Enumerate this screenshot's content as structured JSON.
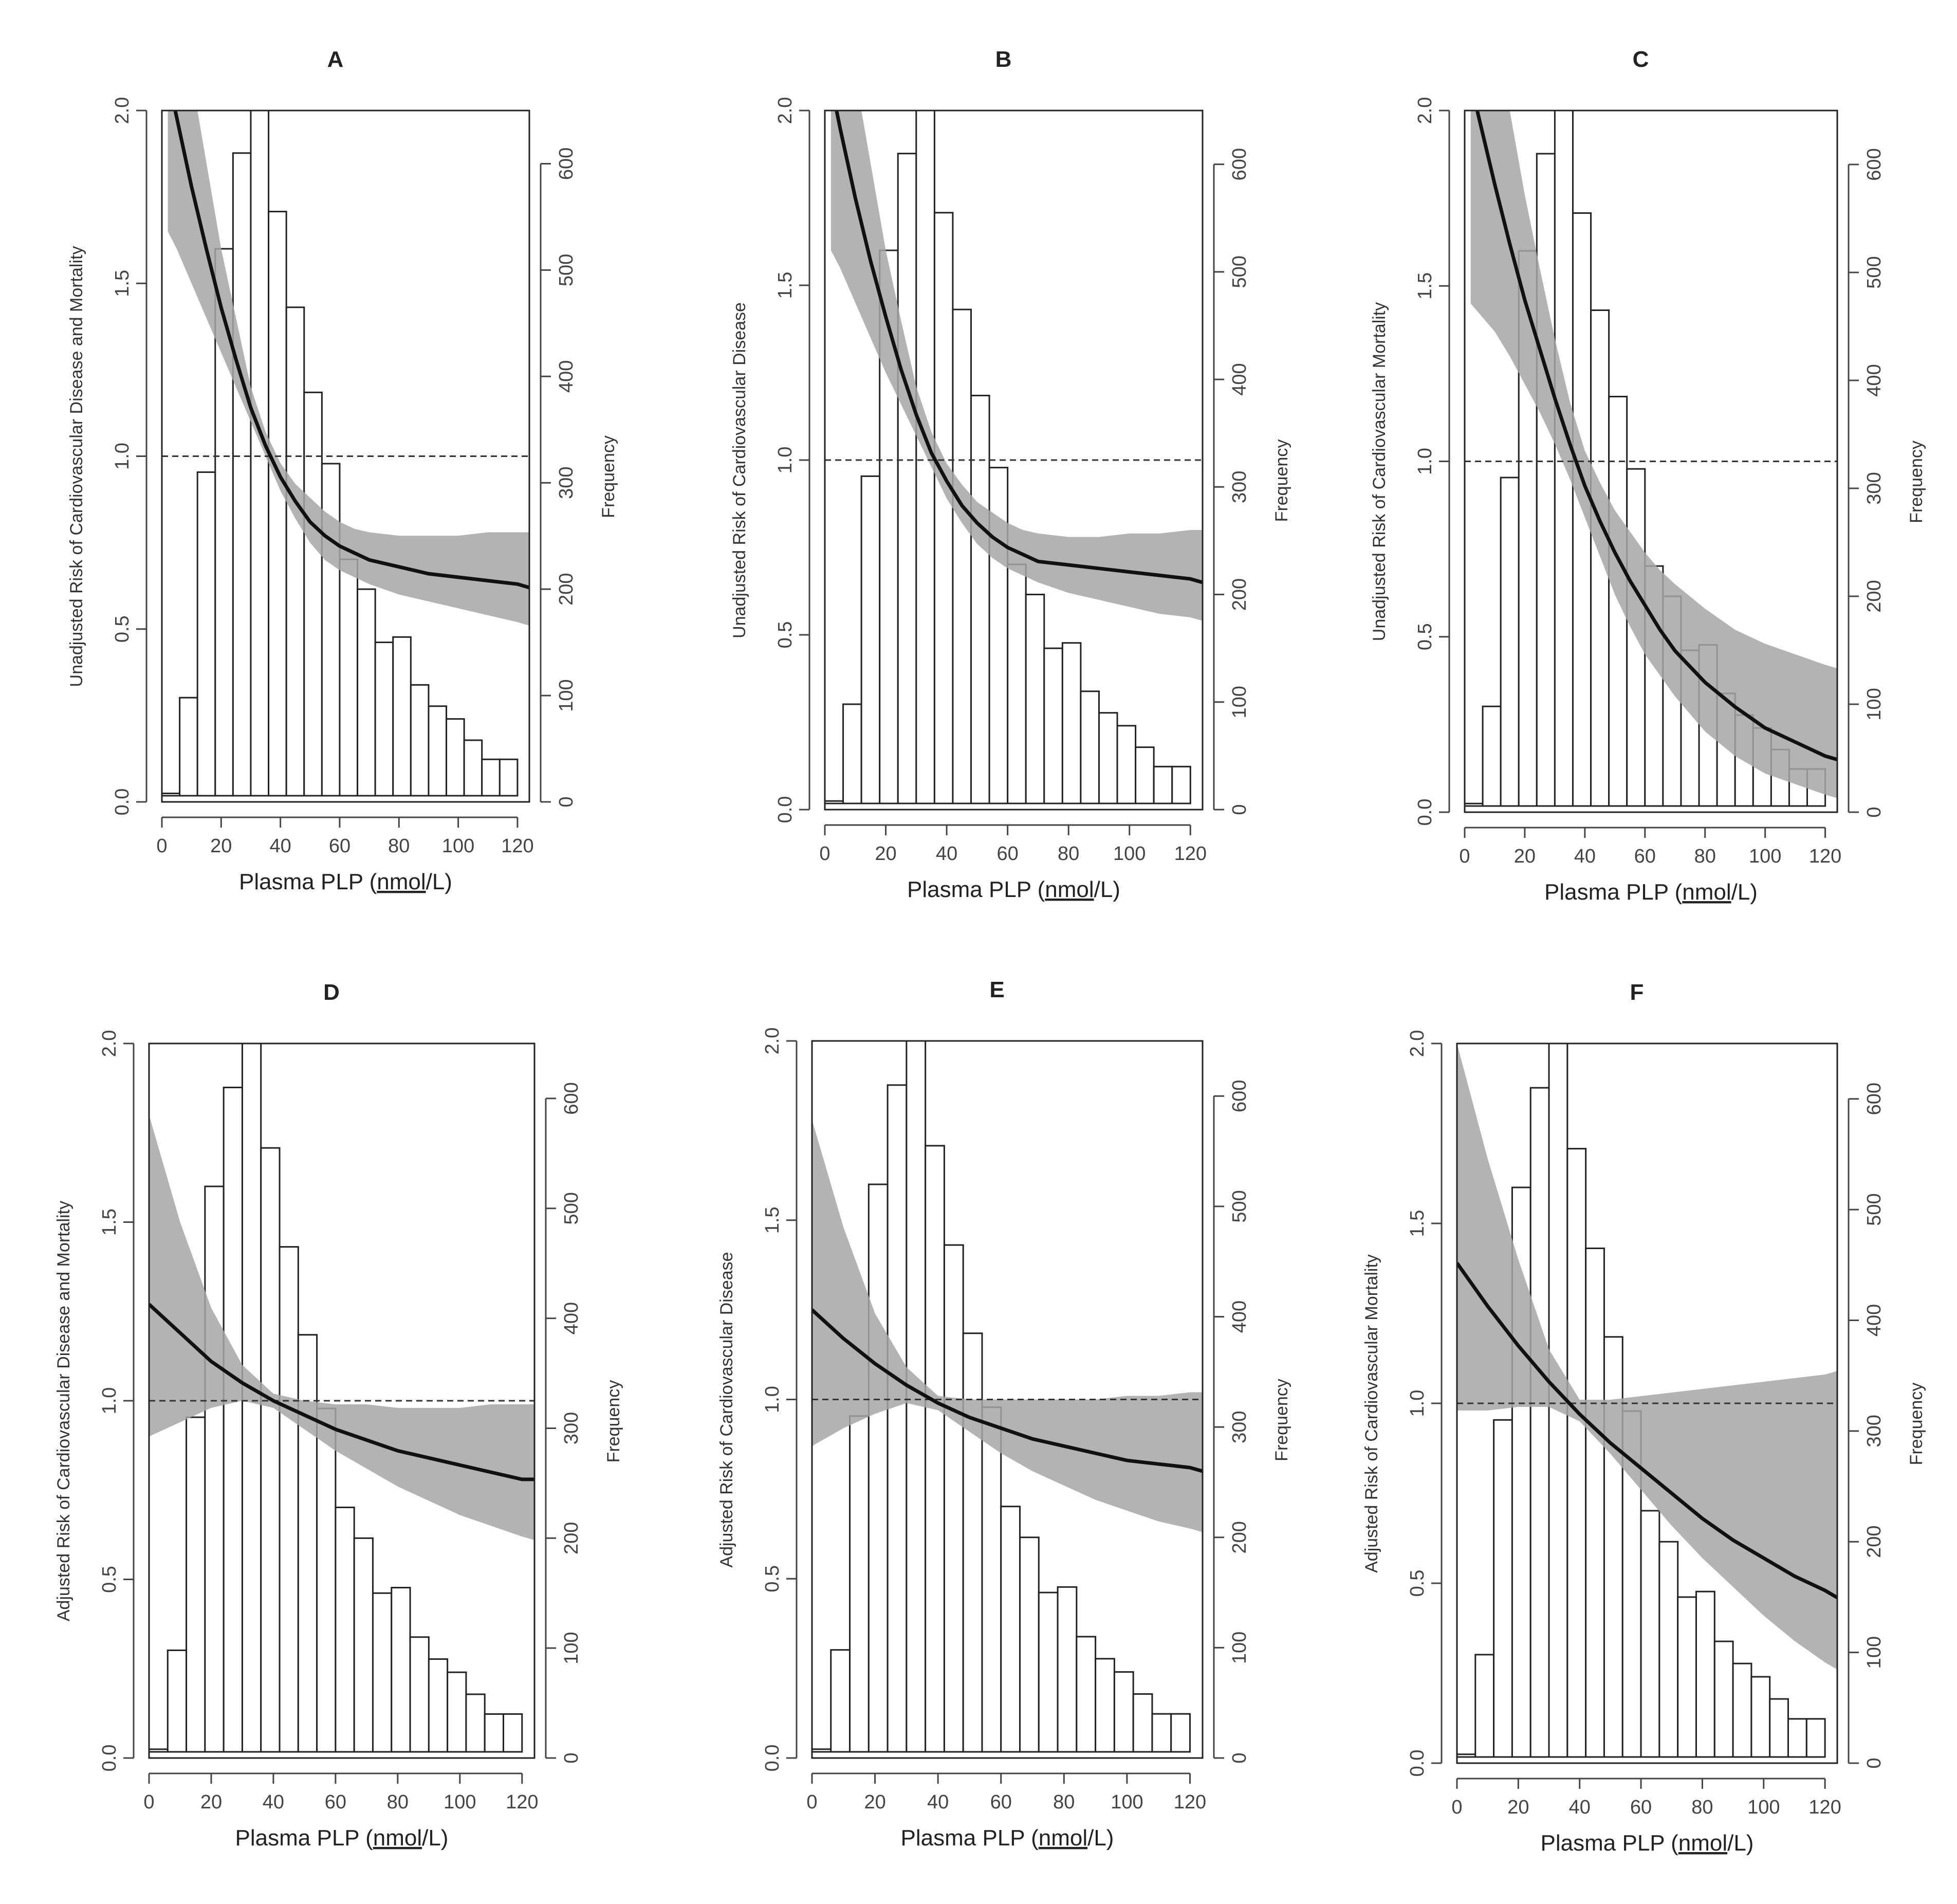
{
  "chart_data": [
    {
      "type": "line",
      "panel_label": "A",
      "title": "A",
      "xlabel": "Plasma PLP (nmol/L)",
      "ylabel": "Unadjusted Risk of Cardiovascular Disease and Mortality",
      "y2label": "Frequency",
      "xlim": [
        0,
        124
      ],
      "ylim": [
        0,
        2.0
      ],
      "y2lim": [
        0,
        650
      ],
      "xticks": [
        "0",
        "20",
        "40",
        "60",
        "80",
        "100",
        "120"
      ],
      "yticks": [
        "0.0",
        "0.5",
        "1.0",
        "1.5",
        "2.0"
      ],
      "y2ticks": [
        "0",
        "100",
        "200",
        "300",
        "400",
        "500",
        "600"
      ],
      "reference_line": 1.0,
      "curve": {
        "x": [
          2,
          5,
          10,
          15,
          20,
          25,
          30,
          35,
          40,
          45,
          50,
          55,
          60,
          65,
          70,
          80,
          90,
          100,
          110,
          120,
          124
        ],
        "y": [
          2.1,
          1.98,
          1.78,
          1.6,
          1.43,
          1.28,
          1.14,
          1.03,
          0.94,
          0.87,
          0.81,
          0.77,
          0.74,
          0.72,
          0.7,
          0.68,
          0.66,
          0.65,
          0.64,
          0.63,
          0.62
        ]
      },
      "ci_lower": [
        1.65,
        1.6,
        1.5,
        1.4,
        1.3,
        1.2,
        1.1,
        1.0,
        0.9,
        0.82,
        0.75,
        0.7,
        0.67,
        0.65,
        0.63,
        0.6,
        0.58,
        0.56,
        0.54,
        0.52,
        0.51
      ],
      "ci_upper": [
        2.1,
        2.1,
        2.1,
        1.85,
        1.6,
        1.4,
        1.2,
        1.07,
        0.98,
        0.92,
        0.88,
        0.84,
        0.81,
        0.79,
        0.78,
        0.77,
        0.77,
        0.77,
        0.78,
        0.78,
        0.78
      ],
      "histogram": {
        "bin_width": 6,
        "bin_starts": [
          0,
          6,
          12,
          18,
          24,
          30,
          36,
          42,
          48,
          54,
          60,
          66,
          72,
          78,
          84,
          90,
          96,
          102,
          108,
          114
        ],
        "counts": [
          8,
          98,
          310,
          520,
          610,
          650,
          555,
          465,
          385,
          318,
          228,
          200,
          150,
          155,
          110,
          90,
          78,
          58,
          40,
          40
        ]
      }
    },
    {
      "type": "line",
      "panel_label": "B",
      "title": "B",
      "xlabel": "Plasma PLP (nmol/L)",
      "ylabel": "Unadjusted Risk of Cardiovascular Disease",
      "y2label": "Frequency",
      "xlim": [
        0,
        124
      ],
      "ylim": [
        0,
        2.0
      ],
      "y2lim": [
        0,
        650
      ],
      "xticks": [
        "0",
        "20",
        "40",
        "60",
        "80",
        "100",
        "120"
      ],
      "yticks": [
        "0.0",
        "0.5",
        "1.0",
        "1.5",
        "2.0"
      ],
      "y2ticks": [
        "0",
        "100",
        "200",
        "300",
        "400",
        "500",
        "600"
      ],
      "reference_line": 1.0,
      "curve": {
        "x": [
          2,
          5,
          10,
          15,
          20,
          25,
          30,
          35,
          40,
          45,
          50,
          55,
          60,
          65,
          70,
          80,
          90,
          100,
          110,
          120,
          124
        ],
        "y": [
          2.08,
          1.95,
          1.75,
          1.57,
          1.41,
          1.26,
          1.13,
          1.02,
          0.94,
          0.87,
          0.82,
          0.78,
          0.75,
          0.73,
          0.71,
          0.7,
          0.69,
          0.68,
          0.67,
          0.66,
          0.65
        ]
      },
      "ci_lower": [
        1.6,
        1.55,
        1.45,
        1.35,
        1.25,
        1.16,
        1.07,
        0.98,
        0.89,
        0.82,
        0.76,
        0.72,
        0.69,
        0.67,
        0.65,
        0.62,
        0.6,
        0.58,
        0.56,
        0.55,
        0.54
      ],
      "ci_upper": [
        2.1,
        2.1,
        2.1,
        1.85,
        1.6,
        1.4,
        1.21,
        1.08,
        0.99,
        0.93,
        0.88,
        0.85,
        0.82,
        0.8,
        0.79,
        0.78,
        0.78,
        0.79,
        0.79,
        0.8,
        0.8
      ],
      "histogram": {
        "bin_width": 6,
        "bin_starts": [
          0,
          6,
          12,
          18,
          24,
          30,
          36,
          42,
          48,
          54,
          60,
          66,
          72,
          78,
          84,
          90,
          96,
          102,
          108,
          114
        ],
        "counts": [
          8,
          98,
          310,
          520,
          610,
          650,
          555,
          465,
          385,
          318,
          228,
          200,
          150,
          155,
          110,
          90,
          78,
          58,
          40,
          40
        ]
      }
    },
    {
      "type": "line",
      "panel_label": "C",
      "title": "C",
      "xlabel": "Plasma PLP (nmol/L)",
      "ylabel": "Unadjusted Risk of Cardiovascular Mortality",
      "y2label": "Frequency",
      "xlim": [
        0,
        124
      ],
      "ylim": [
        0,
        2.0
      ],
      "y2lim": [
        0,
        650
      ],
      "xticks": [
        "0",
        "20",
        "40",
        "60",
        "80",
        "100",
        "120"
      ],
      "yticks": [
        "0.0",
        "0.5",
        "1.0",
        "1.5",
        "2.0"
      ],
      "y2ticks": [
        "0",
        "100",
        "200",
        "300",
        "400",
        "500",
        "600"
      ],
      "reference_line": 1.0,
      "curve": {
        "x": [
          2,
          5,
          10,
          15,
          20,
          25,
          30,
          35,
          40,
          45,
          50,
          55,
          60,
          65,
          70,
          80,
          90,
          100,
          110,
          120,
          124
        ],
        "y": [
          2.08,
          1.97,
          1.79,
          1.62,
          1.46,
          1.32,
          1.18,
          1.05,
          0.93,
          0.83,
          0.74,
          0.66,
          0.59,
          0.52,
          0.46,
          0.37,
          0.3,
          0.24,
          0.2,
          0.16,
          0.15
        ]
      },
      "ci_lower": [
        1.45,
        1.42,
        1.37,
        1.3,
        1.22,
        1.14,
        1.05,
        0.95,
        0.84,
        0.73,
        0.62,
        0.53,
        0.45,
        0.39,
        0.33,
        0.23,
        0.16,
        0.11,
        0.08,
        0.05,
        0.04
      ],
      "ci_upper": [
        2.1,
        2.1,
        2.1,
        2.0,
        1.76,
        1.55,
        1.35,
        1.17,
        1.03,
        0.94,
        0.86,
        0.8,
        0.74,
        0.69,
        0.65,
        0.58,
        0.52,
        0.48,
        0.45,
        0.42,
        0.41
      ],
      "histogram": {
        "bin_width": 6,
        "bin_starts": [
          0,
          6,
          12,
          18,
          24,
          30,
          36,
          42,
          48,
          54,
          60,
          66,
          72,
          78,
          84,
          90,
          96,
          102,
          108,
          114
        ],
        "counts": [
          8,
          98,
          310,
          520,
          610,
          650,
          555,
          465,
          385,
          318,
          228,
          200,
          150,
          155,
          110,
          90,
          78,
          58,
          40,
          40
        ]
      }
    },
    {
      "type": "line",
      "panel_label": "D",
      "title": "D",
      "xlabel": "Plasma PLP (nmol/L)",
      "ylabel": "Adjusted Risk of Cardiovascular Disease and Mortality",
      "y2label": "Frequency",
      "xlim": [
        0,
        124
      ],
      "ylim": [
        0,
        2.0
      ],
      "y2lim": [
        0,
        650
      ],
      "xticks": [
        "0",
        "20",
        "40",
        "60",
        "80",
        "100",
        "120"
      ],
      "yticks": [
        "0.0",
        "0.5",
        "1.0",
        "1.5",
        "2.0"
      ],
      "y2ticks": [
        "0",
        "100",
        "200",
        "300",
        "400",
        "500",
        "600"
      ],
      "reference_line": 1.0,
      "curve": {
        "x": [
          0,
          10,
          20,
          30,
          40,
          50,
          60,
          70,
          80,
          90,
          100,
          110,
          120,
          124
        ],
        "y": [
          1.27,
          1.19,
          1.11,
          1.05,
          1.0,
          0.96,
          0.92,
          0.89,
          0.86,
          0.84,
          0.82,
          0.8,
          0.78,
          0.78
        ]
      },
      "ci_lower": [
        0.9,
        0.94,
        0.98,
        1.0,
        0.98,
        0.92,
        0.86,
        0.81,
        0.76,
        0.72,
        0.68,
        0.65,
        0.62,
        0.61
      ],
      "ci_upper": [
        1.8,
        1.5,
        1.26,
        1.1,
        1.02,
        1.0,
        0.99,
        0.99,
        0.98,
        0.98,
        0.98,
        0.99,
        0.99,
        0.99
      ],
      "histogram": {
        "bin_width": 6,
        "bin_starts": [
          0,
          6,
          12,
          18,
          24,
          30,
          36,
          42,
          48,
          54,
          60,
          66,
          72,
          78,
          84,
          90,
          96,
          102,
          108,
          114
        ],
        "counts": [
          8,
          98,
          310,
          520,
          610,
          650,
          555,
          465,
          385,
          318,
          228,
          200,
          150,
          155,
          110,
          90,
          78,
          58,
          40,
          40
        ]
      }
    },
    {
      "type": "line",
      "panel_label": "E",
      "title": "E",
      "xlabel": "Plasma PLP (nmol/L)",
      "ylabel": "Adjusted Risk of Cardiovascular Disease",
      "y2label": "Frequency",
      "xlim": [
        0,
        124
      ],
      "ylim": [
        0,
        2.0
      ],
      "y2lim": [
        0,
        650
      ],
      "xticks": [
        "0",
        "20",
        "40",
        "60",
        "80",
        "100",
        "120"
      ],
      "yticks": [
        "0.0",
        "0.5",
        "1.0",
        "1.5",
        "2.0"
      ],
      "y2ticks": [
        "0",
        "100",
        "200",
        "300",
        "400",
        "500",
        "600"
      ],
      "reference_line": 1.0,
      "curve": {
        "x": [
          0,
          10,
          20,
          30,
          40,
          50,
          60,
          70,
          80,
          90,
          100,
          110,
          120,
          124
        ],
        "y": [
          1.25,
          1.17,
          1.1,
          1.04,
          0.99,
          0.95,
          0.92,
          0.89,
          0.87,
          0.85,
          0.83,
          0.82,
          0.81,
          0.8
        ]
      },
      "ci_lower": [
        0.87,
        0.92,
        0.96,
        0.99,
        0.97,
        0.91,
        0.85,
        0.8,
        0.76,
        0.72,
        0.69,
        0.66,
        0.64,
        0.63
      ],
      "ci_upper": [
        1.78,
        1.48,
        1.24,
        1.09,
        1.01,
        1.0,
        1.0,
        1.0,
        1.0,
        1.0,
        1.01,
        1.01,
        1.02,
        1.02
      ],
      "histogram": {
        "bin_width": 6,
        "bin_starts": [
          0,
          6,
          12,
          18,
          24,
          30,
          36,
          42,
          48,
          54,
          60,
          66,
          72,
          78,
          84,
          90,
          96,
          102,
          108,
          114
        ],
        "counts": [
          8,
          98,
          310,
          520,
          610,
          650,
          555,
          465,
          385,
          318,
          228,
          200,
          150,
          155,
          110,
          90,
          78,
          58,
          40,
          40
        ]
      }
    },
    {
      "type": "line",
      "panel_label": "F",
      "title": "F",
      "xlabel": "Plasma PLP (nmol/L)",
      "ylabel": "Adjusted Risk of Cardiovascular Mortality",
      "y2label": "Frequency",
      "xlim": [
        0,
        124
      ],
      "ylim": [
        0,
        2.0
      ],
      "y2lim": [
        0,
        650
      ],
      "xticks": [
        "0",
        "20",
        "40",
        "60",
        "80",
        "100",
        "120"
      ],
      "yticks": [
        "0.0",
        "0.5",
        "1.0",
        "1.5",
        "2.0"
      ],
      "y2ticks": [
        "0",
        "100",
        "200",
        "300",
        "400",
        "500",
        "600"
      ],
      "reference_line": 1.0,
      "curve": {
        "x": [
          0,
          10,
          20,
          30,
          40,
          50,
          60,
          70,
          80,
          90,
          100,
          110,
          120,
          124
        ],
        "y": [
          1.39,
          1.27,
          1.16,
          1.06,
          0.97,
          0.89,
          0.82,
          0.75,
          0.68,
          0.62,
          0.57,
          0.52,
          0.48,
          0.46
        ]
      },
      "ci_lower": [
        0.98,
        0.98,
        0.99,
        0.99,
        0.95,
        0.86,
        0.76,
        0.66,
        0.57,
        0.49,
        0.41,
        0.34,
        0.28,
        0.26
      ],
      "ci_upper": [
        2.0,
        1.68,
        1.4,
        1.15,
        1.01,
        1.01,
        1.02,
        1.03,
        1.04,
        1.05,
        1.06,
        1.07,
        1.08,
        1.09
      ],
      "histogram": {
        "bin_width": 6,
        "bin_starts": [
          0,
          6,
          12,
          18,
          24,
          30,
          36,
          42,
          48,
          54,
          60,
          66,
          72,
          78,
          84,
          90,
          96,
          102,
          108,
          114
        ],
        "counts": [
          8,
          98,
          310,
          520,
          610,
          650,
          555,
          465,
          385,
          318,
          228,
          200,
          150,
          155,
          110,
          90,
          78,
          58,
          40,
          40
        ]
      }
    }
  ]
}
